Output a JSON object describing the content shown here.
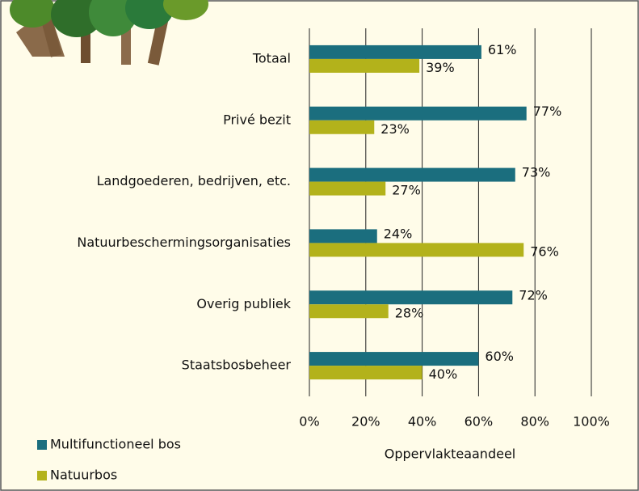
{
  "chart_data": {
    "type": "hbar",
    "categories": [
      "Totaal",
      "Privé bezit",
      "Landgoederen, bedrijven, etc.",
      "Natuurbeschermingsorganisaties",
      "Overig publiek",
      "Staatsbosbeheer"
    ],
    "series": [
      {
        "name": "Multifunctioneel bos",
        "color": "#1b6e7e",
        "values": [
          61,
          77,
          73,
          24,
          72,
          60
        ],
        "value_labels": [
          "61%",
          "77%",
          "73%",
          "24%",
          "72%",
          "60%"
        ]
      },
      {
        "name": "Natuurbos",
        "color": "#b3b21b",
        "values": [
          39,
          23,
          27,
          76,
          28,
          40
        ],
        "value_labels": [
          "39%",
          "23%",
          "27%",
          "76%",
          "28%",
          "40%"
        ]
      }
    ],
    "x_label": "Oppervlakteaandeel",
    "xlim": [
      0,
      100
    ],
    "xticks": [
      {
        "value": 0,
        "label": "0%"
      },
      {
        "value": 20,
        "label": "20%"
      },
      {
        "value": 40,
        "label": "40%"
      },
      {
        "value": 60,
        "label": "60%"
      },
      {
        "value": 80,
        "label": "80%"
      },
      {
        "value": 100,
        "label": "100%"
      }
    ],
    "grid": true
  }
}
